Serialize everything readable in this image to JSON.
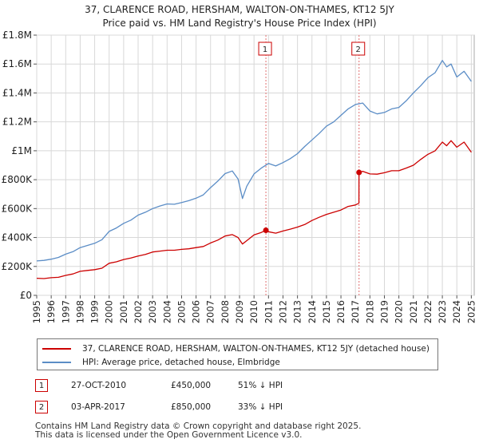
{
  "chart_data": {
    "type": "line",
    "title": "37, CLARENCE ROAD, HERSHAM, WALTON-ON-THAMES, KT12 5JY",
    "subtitle": "Price paid vs. HM Land Registry's House Price Index (HPI)",
    "ylim": [
      0,
      1800000
    ],
    "xlim": [
      1995.0,
      2025.2
    ],
    "y_ticks": [
      {
        "value": 0,
        "label": "£0"
      },
      {
        "value": 200000,
        "label": "£200K"
      },
      {
        "value": 400000,
        "label": "£400K"
      },
      {
        "value": 600000,
        "label": "£600K"
      },
      {
        "value": 800000,
        "label": "£800K"
      },
      {
        "value": 1000000,
        "label": "£1M"
      },
      {
        "value": 1200000,
        "label": "£1.2M"
      },
      {
        "value": 1400000,
        "label": "£1.4M"
      },
      {
        "value": 1600000,
        "label": "£1.6M"
      },
      {
        "value": 1800000,
        "label": "£1.8M"
      }
    ],
    "x_ticks": [
      "1995",
      "1996",
      "1997",
      "1998",
      "1999",
      "2000",
      "2001",
      "2002",
      "2003",
      "2004",
      "2005",
      "2006",
      "2007",
      "2008",
      "2009",
      "2010",
      "2011",
      "2012",
      "2013",
      "2014",
      "2015",
      "2016",
      "2017",
      "2018",
      "2019",
      "2020",
      "2021",
      "2022",
      "2023",
      "2024",
      "2025"
    ],
    "grid": true,
    "series": [
      {
        "name": "37, CLARENCE ROAD, HERSHAM, WALTON-ON-THAMES, KT12 5JY (detached house)",
        "color": "#cc0000",
        "x": [
          1995.0,
          1995.5,
          1996.0,
          1996.5,
          1997.0,
          1997.5,
          1998.0,
          1998.5,
          1999.0,
          1999.5,
          2000.0,
          2000.5,
          2001.0,
          2001.5,
          2002.0,
          2002.5,
          2003.0,
          2003.5,
          2004.0,
          2004.5,
          2005.0,
          2005.5,
          2006.0,
          2006.5,
          2007.0,
          2007.5,
          2008.0,
          2008.5,
          2008.9,
          2009.2,
          2009.5,
          2010.0,
          2010.5,
          2010.82,
          2011.0,
          2011.5,
          2012.0,
          2012.5,
          2013.0,
          2013.5,
          2014.0,
          2014.5,
          2015.0,
          2015.5,
          2016.0,
          2016.5,
          2017.0,
          2017.24,
          2017.25,
          2017.5,
          2018.0,
          2018.5,
          2019.0,
          2019.5,
          2020.0,
          2020.5,
          2021.0,
          2021.5,
          2022.0,
          2022.5,
          2023.0,
          2023.3,
          2023.6,
          2024.0,
          2024.5,
          2025.0
        ],
        "y": [
          118000,
          116000,
          122000,
          125000,
          138000,
          148000,
          166000,
          172000,
          178000,
          188000,
          222000,
          232000,
          248000,
          258000,
          272000,
          283000,
          300000,
          306000,
          312000,
          312000,
          318000,
          322000,
          330000,
          338000,
          362000,
          382000,
          410000,
          420000,
          400000,
          355000,
          378000,
          418000,
          435000,
          450000,
          440000,
          430000,
          445000,
          458000,
          472000,
          490000,
          518000,
          540000,
          560000,
          575000,
          590000,
          615000,
          625000,
          638000,
          850000,
          858000,
          840000,
          838000,
          848000,
          862000,
          862000,
          880000,
          900000,
          940000,
          975000,
          1000000,
          1060000,
          1035000,
          1070000,
          1025000,
          1060000,
          990000
        ]
      },
      {
        "name": "HPI: Average price, detached house, Elmbridge",
        "color": "#5b8dc6",
        "x": [
          1995.0,
          1995.5,
          1996.0,
          1996.5,
          1997.0,
          1997.5,
          1998.0,
          1998.5,
          1999.0,
          1999.5,
          2000.0,
          2000.5,
          2001.0,
          2001.5,
          2002.0,
          2002.5,
          2003.0,
          2003.5,
          2004.0,
          2004.5,
          2005.0,
          2005.5,
          2006.0,
          2006.5,
          2007.0,
          2007.5,
          2008.0,
          2008.5,
          2008.9,
          2009.2,
          2009.5,
          2010.0,
          2010.5,
          2011.0,
          2011.5,
          2012.0,
          2012.5,
          2013.0,
          2013.5,
          2014.0,
          2014.5,
          2015.0,
          2015.5,
          2016.0,
          2016.5,
          2017.0,
          2017.5,
          2018.0,
          2018.5,
          2019.0,
          2019.5,
          2020.0,
          2020.5,
          2021.0,
          2021.5,
          2022.0,
          2022.5,
          2023.0,
          2023.3,
          2023.6,
          2024.0,
          2024.5,
          2025.0
        ],
        "y": [
          238000,
          242000,
          250000,
          262000,
          285000,
          302000,
          330000,
          345000,
          360000,
          385000,
          442000,
          466000,
          498000,
          520000,
          555000,
          575000,
          600000,
          618000,
          632000,
          630000,
          642000,
          655000,
          672000,
          695000,
          745000,
          790000,
          842000,
          860000,
          805000,
          670000,
          755000,
          840000,
          880000,
          912000,
          895000,
          918000,
          945000,
          980000,
          1030000,
          1075000,
          1120000,
          1170000,
          1200000,
          1245000,
          1290000,
          1320000,
          1330000,
          1275000,
          1255000,
          1265000,
          1290000,
          1300000,
          1345000,
          1400000,
          1450000,
          1505000,
          1540000,
          1625000,
          1580000,
          1600000,
          1510000,
          1550000,
          1480000
        ]
      }
    ],
    "markers": [
      {
        "label": "1",
        "x": 2010.82,
        "y": 450000
      },
      {
        "label": "2",
        "x": 2017.25,
        "y": 850000
      }
    ]
  },
  "legend": {
    "items": [
      {
        "label": "37, CLARENCE ROAD, HERSHAM, WALTON-ON-THAMES, KT12 5JY (detached house)",
        "color": "#cc0000"
      },
      {
        "label": "HPI: Average price, detached house, Elmbridge",
        "color": "#5b8dc6"
      }
    ]
  },
  "sales": [
    {
      "num": "1",
      "date": "27-OCT-2010",
      "price": "£450,000",
      "hpi": "51% ↓ HPI"
    },
    {
      "num": "2",
      "date": "03-APR-2017",
      "price": "£850,000",
      "hpi": "33% ↓ HPI"
    }
  ],
  "footer": {
    "line1": "Contains HM Land Registry data © Crown copyright and database right 2025.",
    "line2": "This data is licensed under the Open Government Licence v3.0."
  }
}
